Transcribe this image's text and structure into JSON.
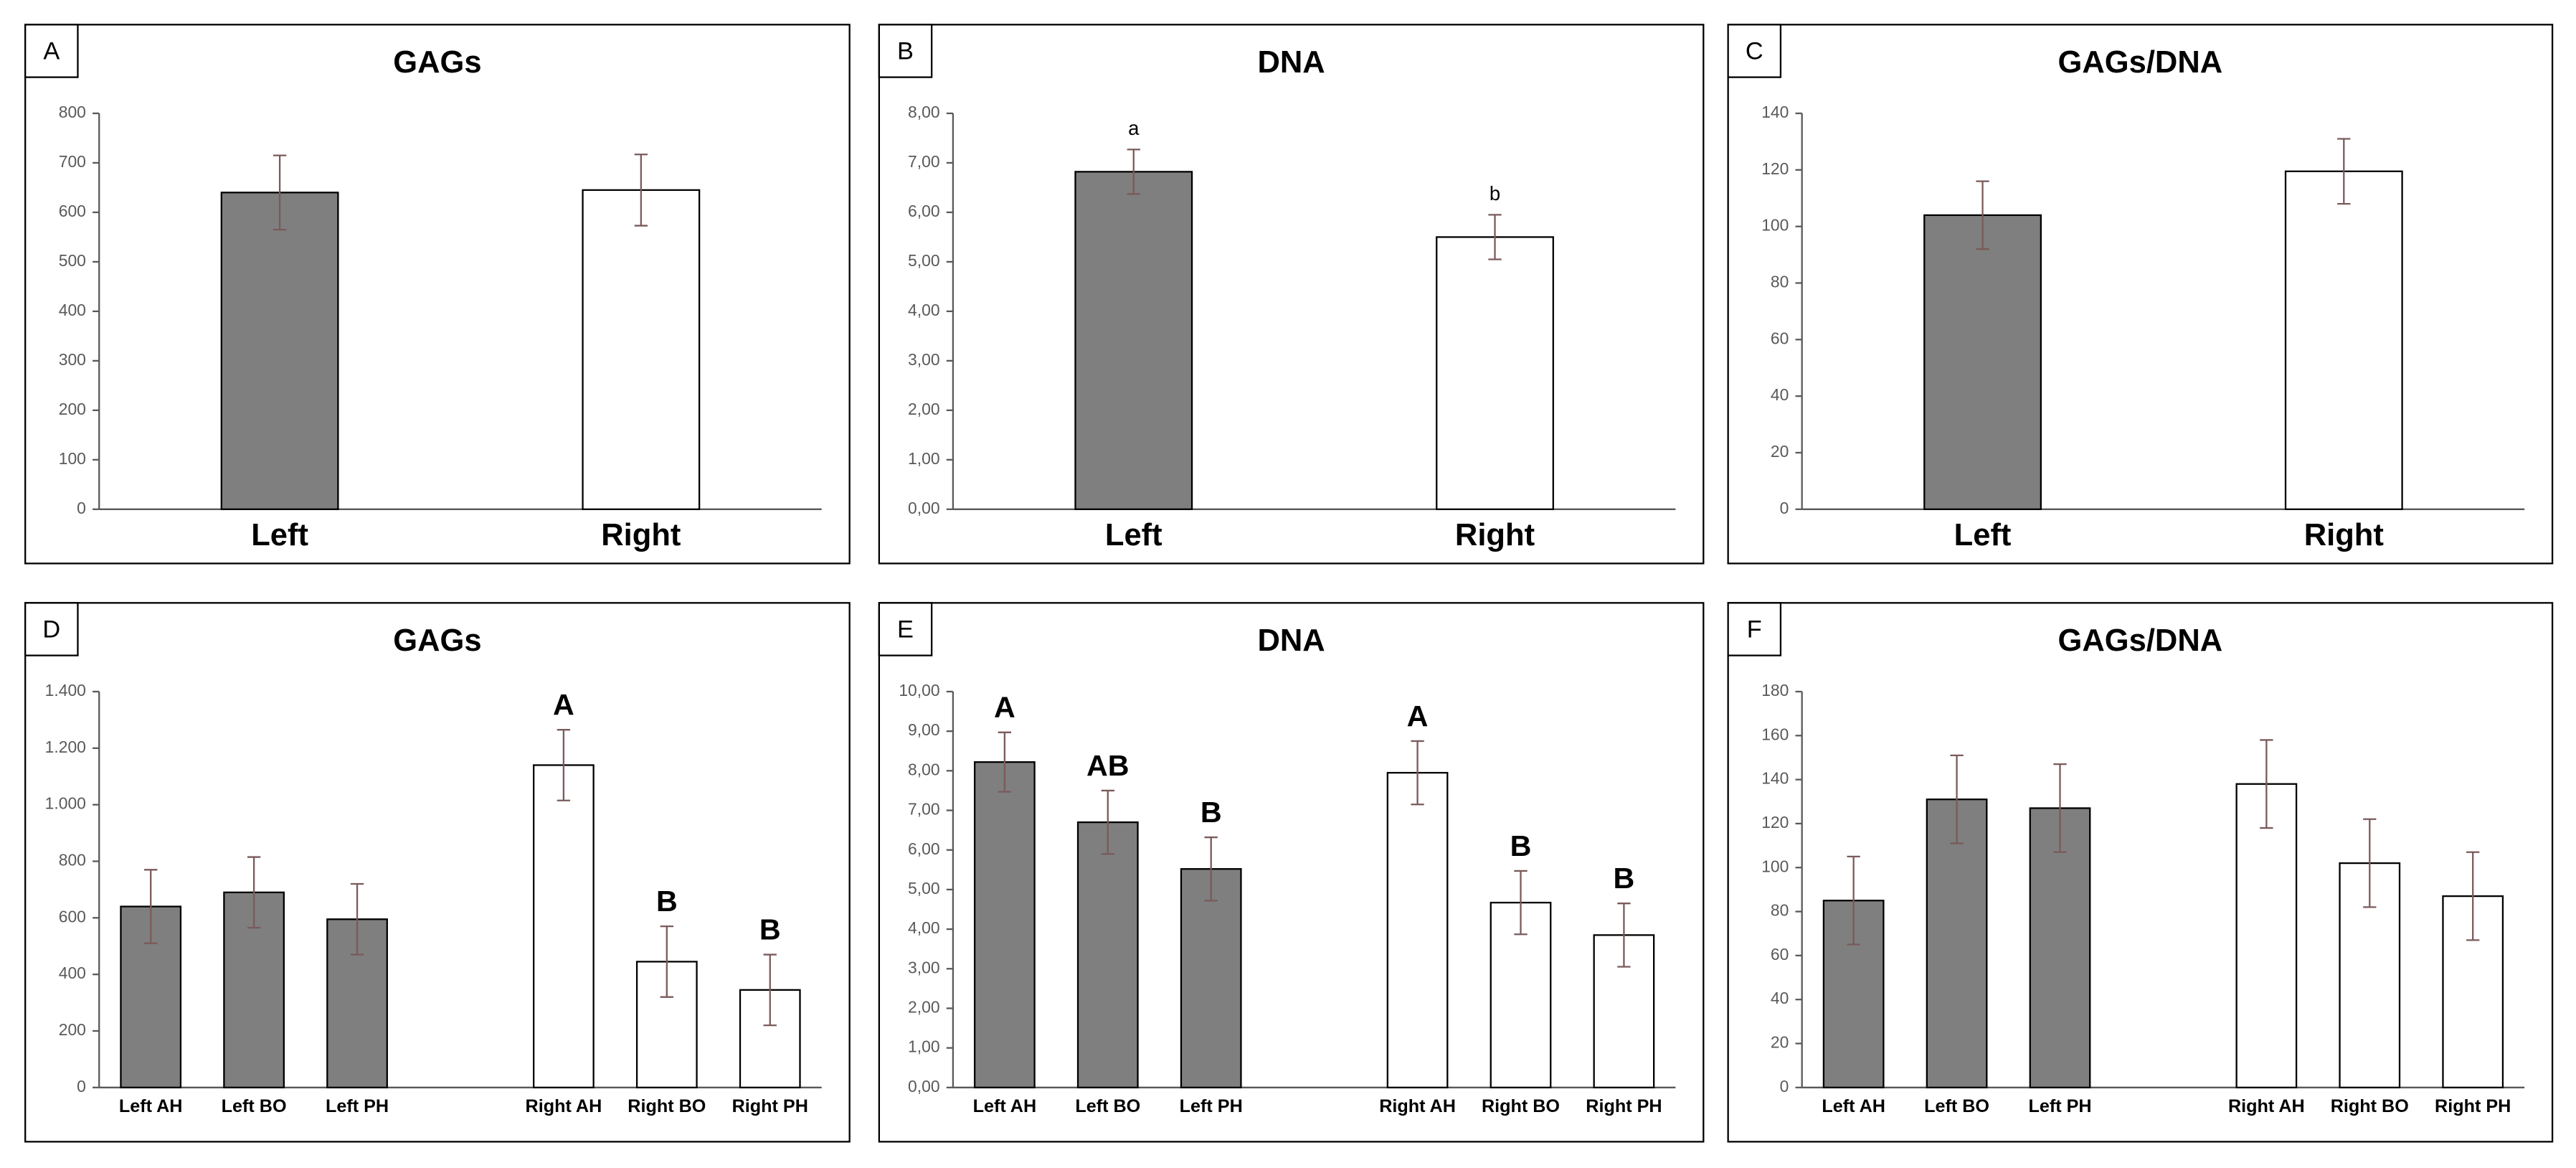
{
  "chart_data": [
    {
      "type": "bar",
      "label": "A",
      "title": "GAGs",
      "categories": [
        "Left",
        "Right"
      ],
      "values": [
        640,
        645
      ],
      "errors": [
        75,
        72
      ],
      "colors": [
        "#7f7f7f",
        "#ffffff"
      ],
      "annotations": [
        null,
        null
      ],
      "ylim": [
        0,
        800
      ],
      "yticks": [
        0,
        100,
        200,
        300,
        400,
        500,
        600,
        700,
        800
      ]
    },
    {
      "type": "bar",
      "label": "B",
      "title": "DNA",
      "categories": [
        "Left",
        "Right"
      ],
      "values": [
        6.82,
        5.5
      ],
      "errors": [
        0.45,
        0.45
      ],
      "colors": [
        "#7f7f7f",
        "#ffffff"
      ],
      "annotations": [
        "a",
        "b"
      ],
      "ylim": [
        0,
        8
      ],
      "yticks": [
        {
          "value": 0,
          "label": "0,00"
        },
        {
          "value": 1,
          "label": "1,00"
        },
        {
          "value": 2,
          "label": "2,00"
        },
        {
          "value": 3,
          "label": "3,00"
        },
        {
          "value": 4,
          "label": "4,00"
        },
        {
          "value": 5,
          "label": "5,00"
        },
        {
          "value": 6,
          "label": "6,00"
        },
        {
          "value": 7,
          "label": "7,00"
        },
        {
          "value": 8,
          "label": "8,00"
        }
      ]
    },
    {
      "type": "bar",
      "label": "C",
      "title": "GAGs/DNA",
      "categories": [
        "Left",
        "Right"
      ],
      "values": [
        104,
        119.5
      ],
      "errors": [
        12,
        11.5
      ],
      "colors": [
        "#7f7f7f",
        "#ffffff"
      ],
      "annotations": [
        null,
        null
      ],
      "ylim": [
        0,
        140
      ],
      "yticks": [
        0,
        20,
        40,
        60,
        80,
        100,
        120,
        140
      ]
    },
    {
      "type": "bar",
      "label": "D",
      "title": "GAGs",
      "categories": [
        "Left AH",
        "Left BO",
        "Left PH",
        null,
        "Right AH",
        "Right BO",
        "Right PH"
      ],
      "values": [
        640,
        690,
        595,
        null,
        1140,
        445,
        345
      ],
      "errors": [
        130,
        125,
        125,
        null,
        125,
        125,
        125
      ],
      "colors": [
        "#7f7f7f",
        "#7f7f7f",
        "#7f7f7f",
        null,
        "#ffffff",
        "#ffffff",
        "#ffffff"
      ],
      "annotations": [
        null,
        null,
        null,
        null,
        "A",
        "B",
        "B"
      ],
      "ylim": [
        0,
        1400
      ],
      "yticks": [
        0,
        200,
        400,
        600,
        800,
        {
          "value": 1000,
          "label": "1.000"
        },
        {
          "value": 1200,
          "label": "1.200"
        },
        {
          "value": 1400,
          "label": "1.400"
        }
      ]
    },
    {
      "type": "bar",
      "label": "E",
      "title": "DNA",
      "categories": [
        "Left AH",
        "Left BO",
        "Left PH",
        null,
        "Right AH",
        "Right BO",
        "Right PH"
      ],
      "values": [
        8.22,
        6.7,
        5.52,
        null,
        7.95,
        4.67,
        3.85
      ],
      "errors": [
        0.75,
        0.8,
        0.8,
        null,
        0.8,
        0.8,
        0.8
      ],
      "colors": [
        "#7f7f7f",
        "#7f7f7f",
        "#7f7f7f",
        null,
        "#ffffff",
        "#ffffff",
        "#ffffff"
      ],
      "annotations": [
        "A",
        "AB",
        "B",
        null,
        "A",
        "B",
        "B"
      ],
      "ylim": [
        0,
        10
      ],
      "yticks": [
        {
          "value": 0,
          "label": "0,00"
        },
        {
          "value": 1,
          "label": "1,00"
        },
        {
          "value": 2,
          "label": "2,00"
        },
        {
          "value": 3,
          "label": "3,00"
        },
        {
          "value": 4,
          "label": "4,00"
        },
        {
          "value": 5,
          "label": "5,00"
        },
        {
          "value": 6,
          "label": "6,00"
        },
        {
          "value": 7,
          "label": "7,00"
        },
        {
          "value": 8,
          "label": "8,00"
        },
        {
          "value": 9,
          "label": "9,00"
        },
        {
          "value": 10,
          "label": "10,00"
        }
      ]
    },
    {
      "type": "bar",
      "label": "F",
      "title": "GAGs/DNA",
      "categories": [
        "Left AH",
        "Left BO",
        "Left PH",
        null,
        "Right AH",
        "Right BO",
        "Right PH"
      ],
      "values": [
        85,
        131,
        127,
        null,
        138,
        102,
        87
      ],
      "errors": [
        20,
        20,
        20,
        null,
        20,
        20,
        20
      ],
      "colors": [
        "#7f7f7f",
        "#7f7f7f",
        "#7f7f7f",
        null,
        "#ffffff",
        "#ffffff",
        "#ffffff"
      ],
      "annotations": [
        null,
        null,
        null,
        null,
        null,
        null,
        null
      ],
      "ylim": [
        0,
        180
      ],
      "yticks": [
        0,
        20,
        40,
        60,
        80,
        100,
        120,
        140,
        160,
        180
      ]
    }
  ]
}
